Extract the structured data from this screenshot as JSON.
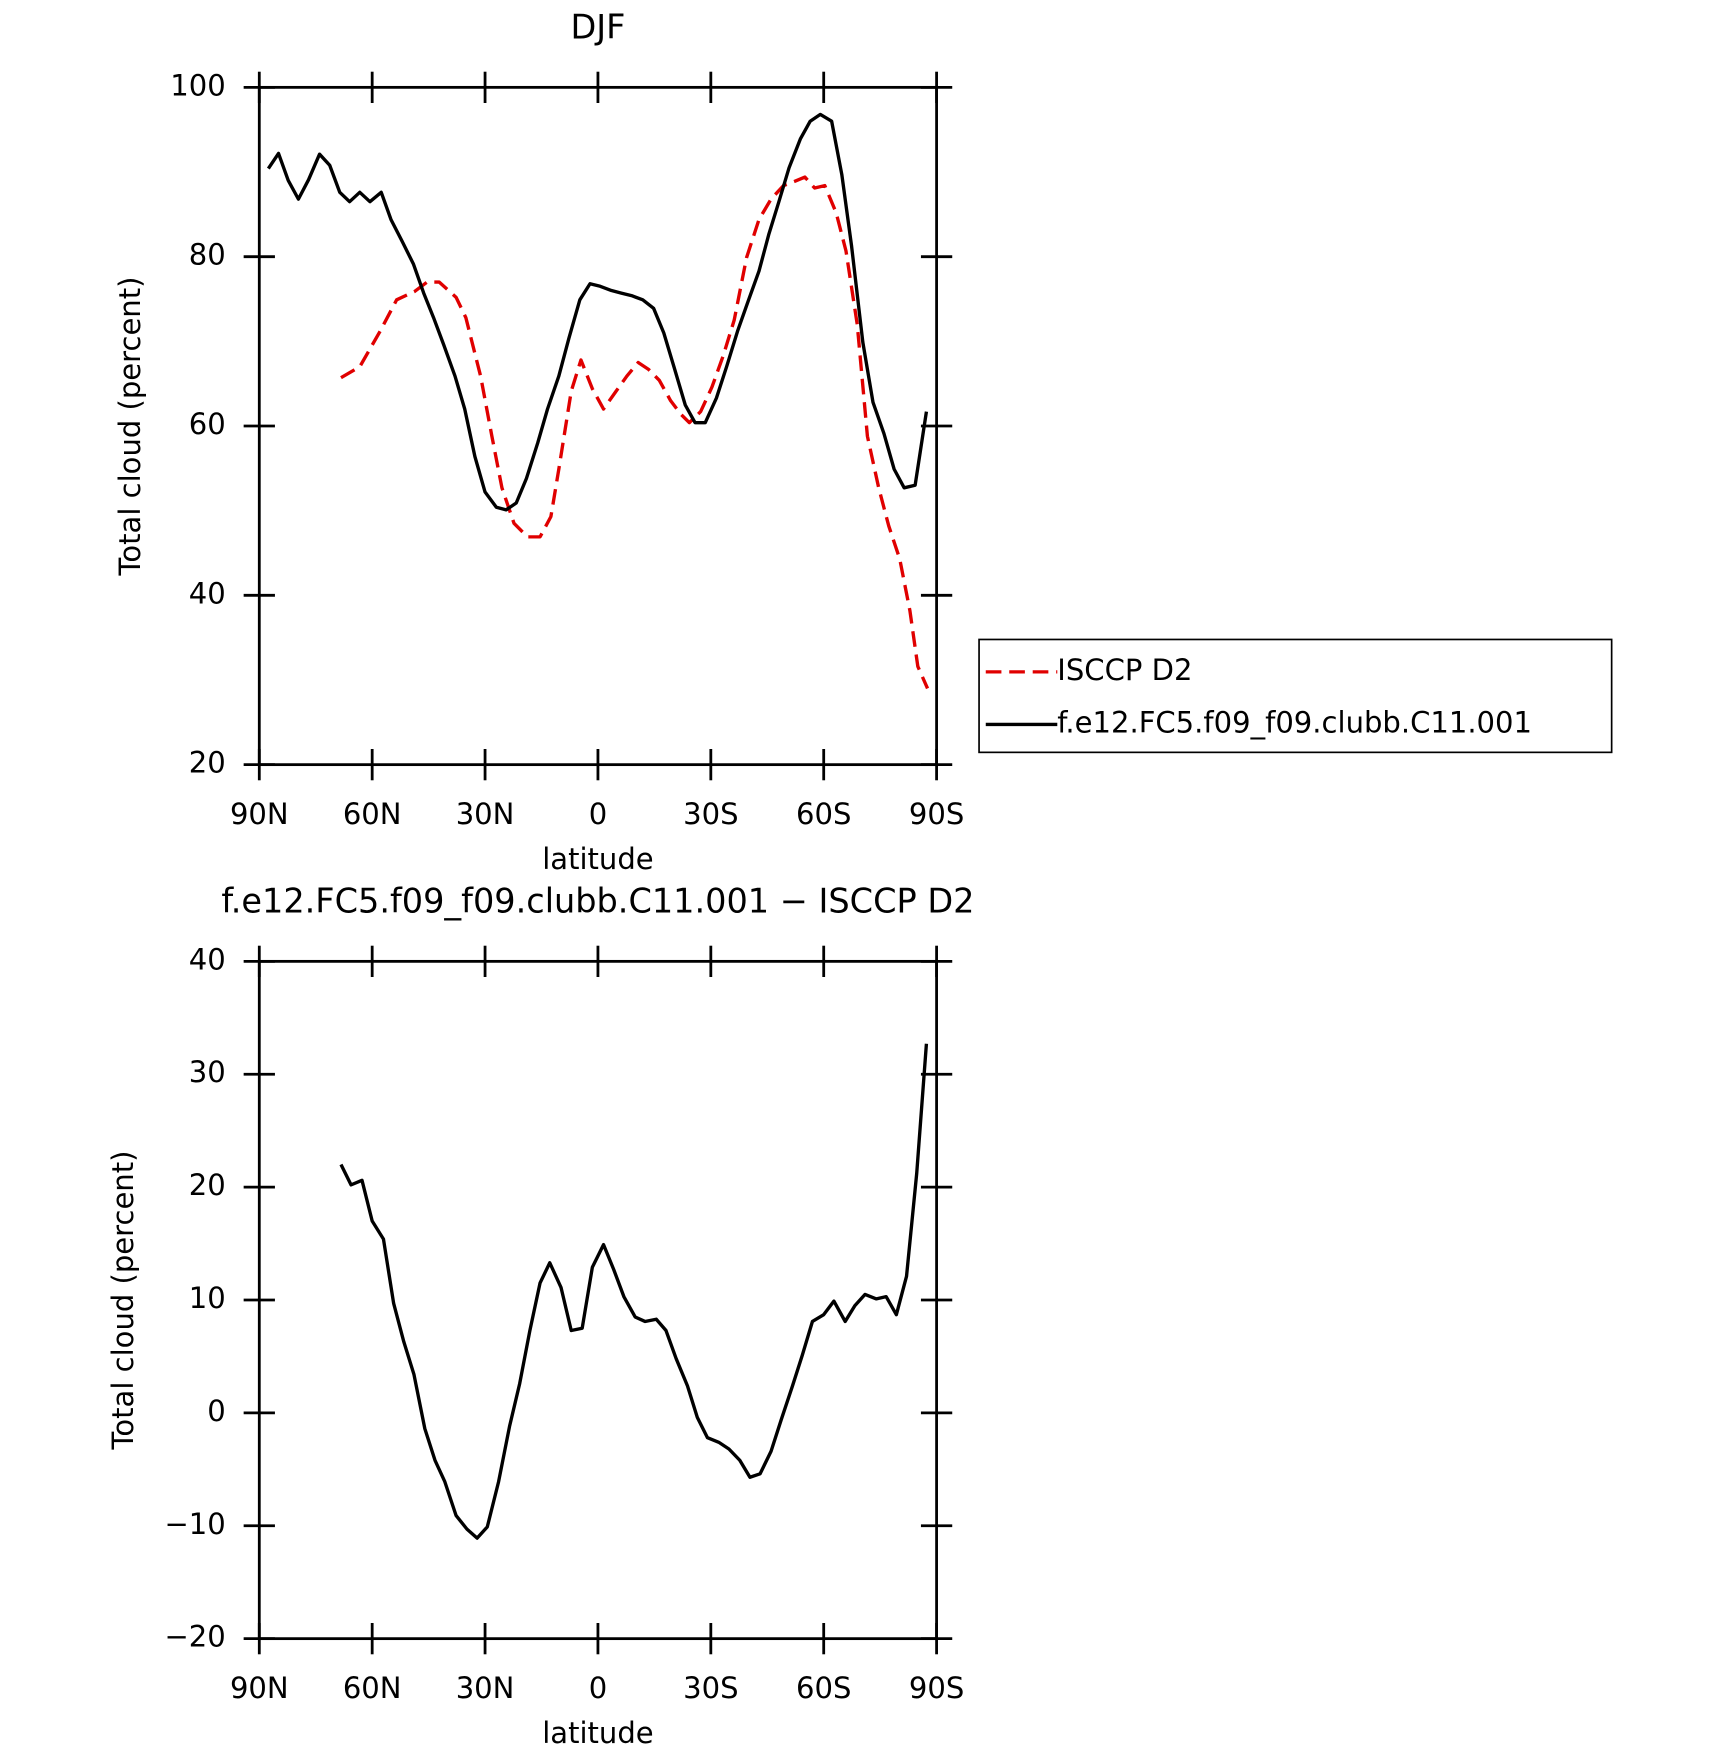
{
  "chart_data": [
    {
      "type": "line",
      "title": "DJF",
      "xlabel": "latitude",
      "ylabel": "Total cloud (percent)",
      "xlim": [
        90,
        -90
      ],
      "xticks": [
        {
          "value": 90,
          "label": "90N"
        },
        {
          "value": 60,
          "label": "60N"
        },
        {
          "value": 30,
          "label": "30N"
        },
        0,
        {
          "value": -30,
          "label": "30S"
        },
        {
          "value": -60,
          "label": "60S"
        },
        {
          "value": -90,
          "label": "90S"
        }
      ],
      "ylim": [
        20,
        100
      ],
      "yticks": [
        20,
        40,
        60,
        80,
        100
      ],
      "legend": "outside-right",
      "series": [
        {
          "name": "ISCCP D2",
          "color": "#e00000",
          "dash": true,
          "x": [
            68.3,
            63.3,
            57.9,
            53.5,
            48.7,
            45.4,
            42.2,
            37.7,
            35.1,
            31.2,
            28.2,
            25.5,
            22.3,
            18.7,
            15.4,
            12.5,
            10.4,
            7.1,
            4.5,
            1.5,
            -1.5,
            -4.8,
            -7.7,
            -10.7,
            -13.4,
            -16.3,
            -19.3,
            -22.0,
            -24.3,
            -27.3,
            -30.3,
            -33.3,
            -36.2,
            -39.5,
            -42.8,
            -46.0,
            -49.3,
            -52.3,
            -55.0,
            -57.6,
            -60.3,
            -63.3,
            -65.9,
            -68.9,
            -71.6,
            -74.6,
            -77.3,
            -80.2,
            -82.9,
            -85.0,
            -87.6
          ],
          "values": [
            65.7,
            67.0,
            71.2,
            74.9,
            75.9,
            77.0,
            77.0,
            75.2,
            72.8,
            65.9,
            58.8,
            52.7,
            48.5,
            46.9,
            46.9,
            49.3,
            54.9,
            64.1,
            67.8,
            64.4,
            62.0,
            64.1,
            65.9,
            67.5,
            66.7,
            65.4,
            63.0,
            61.4,
            60.4,
            61.7,
            64.6,
            68.3,
            72.5,
            79.9,
            84.4,
            86.8,
            88.4,
            88.9,
            89.4,
            88.1,
            88.4,
            85.2,
            80.7,
            72.0,
            58.8,
            52.7,
            48.2,
            44.3,
            38.2,
            31.6,
            29.0
          ]
        },
        {
          "name": "f.e12.FC5.f09_f09.clubb.C11.001",
          "color": "#000000",
          "dash": false,
          "x": [
            87.6,
            84.9,
            82.3,
            79.6,
            76.9,
            74.0,
            71.3,
            68.6,
            66.0,
            63.3,
            60.6,
            57.6,
            55.0,
            52.0,
            49.0,
            46.3,
            43.7,
            41.0,
            38.0,
            35.4,
            32.7,
            30.0,
            27.0,
            24.4,
            21.7,
            19.0,
            16.0,
            13.4,
            10.4,
            7.7,
            4.8,
            2.1,
            -0.6,
            -3.6,
            -6.2,
            -8.9,
            -11.9,
            -14.8,
            -17.5,
            -20.2,
            -23.2,
            -25.8,
            -28.5,
            -31.5,
            -34.2,
            -37.1,
            -39.8,
            -42.8,
            -45.4,
            -48.1,
            -50.8,
            -53.8,
            -56.4,
            -59.1,
            -62.1,
            -64.8,
            -67.4,
            -70.4,
            -73.1,
            -76.0,
            -78.7,
            -81.4,
            -84.3,
            -87.3
          ],
          "values": [
            90.4,
            92.2,
            89.0,
            86.8,
            89.1,
            92.1,
            90.8,
            87.6,
            86.5,
            87.6,
            86.5,
            87.6,
            84.4,
            81.8,
            79.1,
            75.7,
            72.8,
            69.6,
            65.9,
            62.0,
            56.4,
            52.2,
            50.4,
            50.1,
            50.9,
            53.8,
            58.0,
            62.0,
            65.9,
            70.4,
            74.9,
            76.8,
            76.5,
            76.0,
            75.7,
            75.4,
            74.9,
            73.9,
            71.0,
            67.0,
            62.5,
            60.4,
            60.4,
            63.3,
            67.0,
            71.2,
            74.6,
            78.3,
            82.6,
            86.5,
            90.5,
            93.9,
            96.0,
            96.8,
            96.0,
            89.7,
            81.3,
            69.9,
            62.8,
            59.1,
            54.9,
            52.7,
            53.0,
            61.7
          ]
        }
      ]
    },
    {
      "type": "line",
      "title": "f.e12.FC5.f09_f09.clubb.C11.001 − ISCCP D2",
      "xlabel": "latitude",
      "ylabel": "Total cloud (percent)",
      "xlim": [
        90,
        -90
      ],
      "xticks": [
        {
          "value": 90,
          "label": "90N"
        },
        {
          "value": 60,
          "label": "60N"
        },
        {
          "value": 30,
          "label": "30N"
        },
        0,
        {
          "value": -30,
          "label": "30S"
        },
        {
          "value": -60,
          "label": "60S"
        },
        {
          "value": -90,
          "label": "90S"
        }
      ],
      "ylim": [
        -20,
        40
      ],
      "yticks": [
        {
          "value": -20,
          "label": "−20"
        },
        {
          "value": -10,
          "label": "−10"
        },
        0,
        10,
        20,
        30,
        40
      ],
      "series": [
        {
          "color": "#000000",
          "dash": false,
          "x": [
            68.3,
            65.6,
            62.7,
            60.0,
            57.0,
            54.3,
            51.6,
            48.9,
            46.0,
            43.3,
            40.7,
            37.7,
            34.8,
            32.1,
            29.4,
            26.4,
            23.5,
            20.8,
            18.1,
            15.4,
            12.8,
            9.8,
            7.1,
            4.2,
            1.5,
            -1.5,
            -4.2,
            -6.9,
            -9.9,
            -12.5,
            -15.5,
            -18.1,
            -20.8,
            -23.8,
            -26.4,
            -29.1,
            -32.1,
            -34.8,
            -37.7,
            -40.4,
            -43.1,
            -46.0,
            -48.7,
            -51.7,
            -54.3,
            -57.0,
            -60.0,
            -62.7,
            -65.7,
            -68.3,
            -71.0,
            -74.0,
            -76.6,
            -79.3,
            -82.0,
            -84.7,
            -87.3
          ],
          "values": [
            22.0,
            20.2,
            20.6,
            17.0,
            15.4,
            9.7,
            6.3,
            3.4,
            -1.4,
            -4.2,
            -6.1,
            -9.1,
            -10.3,
            -11.1,
            -10.1,
            -6.1,
            -1.2,
            2.6,
            7.3,
            11.5,
            13.3,
            11.1,
            7.3,
            7.5,
            12.9,
            14.9,
            12.7,
            10.3,
            8.5,
            8.1,
            8.3,
            7.3,
            4.8,
            2.4,
            -0.4,
            -2.2,
            -2.6,
            -3.2,
            -4.2,
            -5.7,
            -5.4,
            -3.4,
            -0.6,
            2.4,
            5.1,
            8.1,
            8.7,
            9.9,
            8.1,
            9.5,
            10.5,
            10.1,
            10.3,
            8.7,
            12.1,
            21.2,
            32.7
          ]
        }
      ]
    }
  ]
}
